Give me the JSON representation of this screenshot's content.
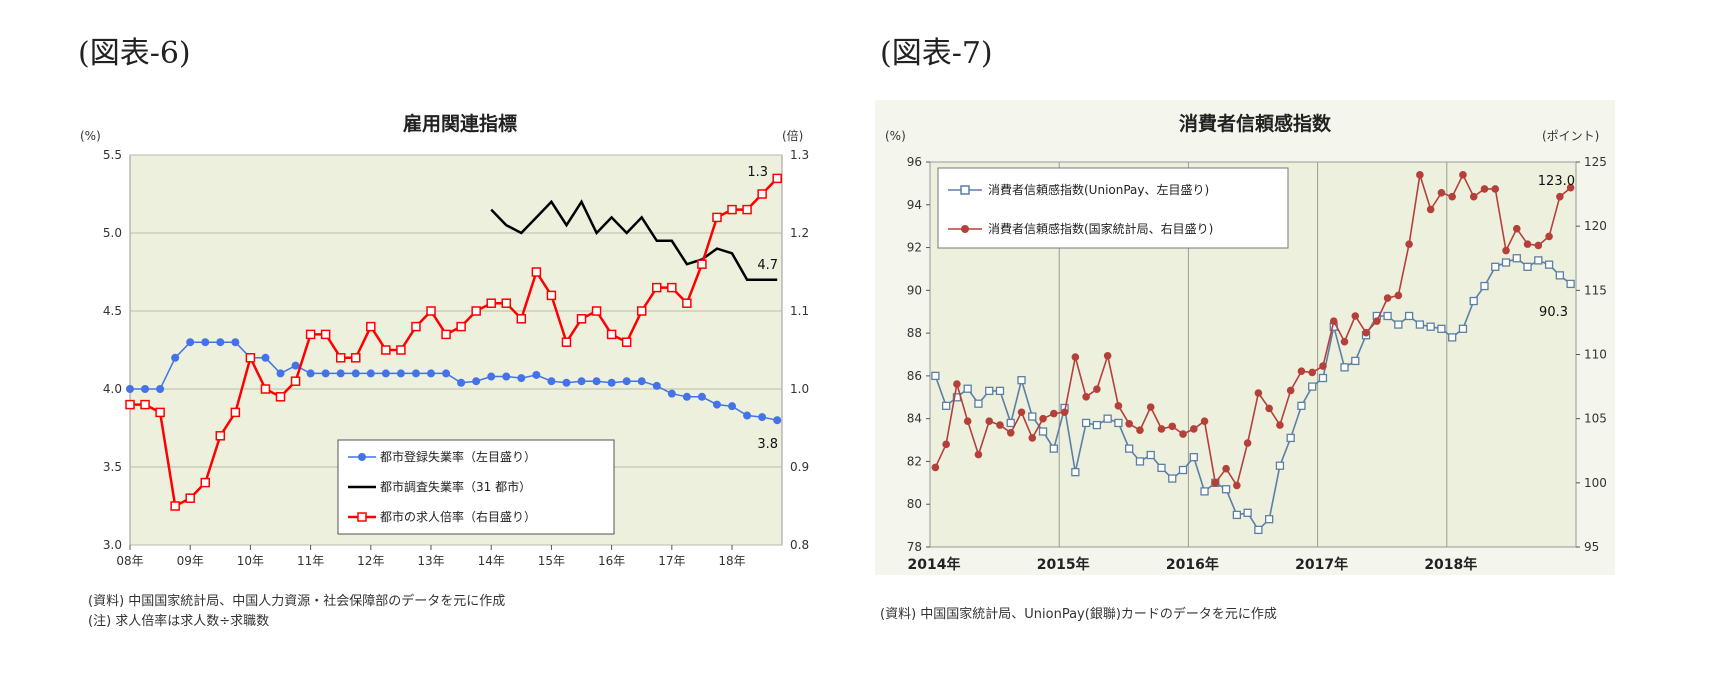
{
  "labels": {
    "fig6": "(図表-6)",
    "fig7": "(図表-7)"
  },
  "chart_data": [
    {
      "type": "line",
      "title": "雇用関連指標",
      "y_left_unit": "(%)",
      "y_right_unit": "(倍)",
      "ylim_left": [
        3.0,
        5.5
      ],
      "ylim_right": [
        0.8,
        1.3
      ],
      "y_left_ticks": [
        "3.0",
        "3.5",
        "4.0",
        "4.5",
        "5.0",
        "5.5"
      ],
      "y_right_ticks": [
        "0.8",
        "0.9",
        "1.0",
        "1.1",
        "1.2",
        "1.3"
      ],
      "x_ticks": [
        "08年",
        "09年",
        "10年",
        "11年",
        "12年",
        "13年",
        "14年",
        "15年",
        "16年",
        "17年",
        "18年"
      ],
      "xlim": [
        2008.0,
        2018.83
      ],
      "grid": "horizontal",
      "plot_bg": "#ecf0dd",
      "legend": "bottom-right",
      "series": [
        {
          "name": "都市登録失業率（左目盛り）",
          "axis": "left",
          "color": "#4472e8",
          "marker": "circle",
          "x": [
            2008.0,
            2008.25,
            2008.5,
            2008.75,
            2009.0,
            2009.25,
            2009.5,
            2009.75,
            2010.0,
            2010.25,
            2010.5,
            2010.75,
            2011.0,
            2011.25,
            2011.5,
            2011.75,
            2012.0,
            2012.25,
            2012.5,
            2012.75,
            2013.0,
            2013.25,
            2013.5,
            2013.75,
            2014.0,
            2014.25,
            2014.5,
            2014.75,
            2015.0,
            2015.25,
            2015.5,
            2015.75,
            2016.0,
            2016.25,
            2016.5,
            2016.75,
            2017.0,
            2017.25,
            2017.5,
            2017.75,
            2018.0,
            2018.25,
            2018.5,
            2018.75
          ],
          "values": [
            4.0,
            4.0,
            4.0,
            4.2,
            4.3,
            4.3,
            4.3,
            4.3,
            4.2,
            4.2,
            4.1,
            4.15,
            4.1,
            4.1,
            4.1,
            4.1,
            4.1,
            4.1,
            4.1,
            4.1,
            4.1,
            4.1,
            4.04,
            4.05,
            4.08,
            4.08,
            4.07,
            4.09,
            4.05,
            4.04,
            4.05,
            4.05,
            4.04,
            4.05,
            4.05,
            4.02,
            3.97,
            3.95,
            3.95,
            3.9,
            3.89,
            3.83,
            3.82,
            3.8
          ]
        },
        {
          "name": "都市調査失業率（31 都市）",
          "axis": "left",
          "color": "#000000",
          "marker": "none",
          "x": [
            2014.0,
            2014.25,
            2014.5,
            2014.75,
            2015.0,
            2015.25,
            2015.5,
            2015.75,
            2016.0,
            2016.25,
            2016.5,
            2016.75,
            2017.0,
            2017.25,
            2017.5,
            2017.75,
            2018.0,
            2018.25,
            2018.5,
            2018.75
          ],
          "values": [
            5.15,
            5.05,
            5.0,
            5.1,
            5.2,
            5.05,
            5.2,
            5.0,
            5.1,
            5.0,
            5.1,
            4.95,
            4.95,
            4.8,
            4.83,
            4.9,
            4.87,
            4.7,
            4.7,
            4.7
          ]
        },
        {
          "name": "都市の求人倍率（右目盛り）",
          "axis": "right",
          "color": "#ff0000",
          "marker": "square",
          "x": [
            2008.0,
            2008.25,
            2008.5,
            2008.75,
            2009.0,
            2009.25,
            2009.5,
            2009.75,
            2010.0,
            2010.25,
            2010.5,
            2010.75,
            2011.0,
            2011.25,
            2011.5,
            2011.75,
            2012.0,
            2012.25,
            2012.5,
            2012.75,
            2013.0,
            2013.25,
            2013.5,
            2013.75,
            2014.0,
            2014.25,
            2014.5,
            2014.75,
            2015.0,
            2015.25,
            2015.5,
            2015.75,
            2016.0,
            2016.25,
            2016.5,
            2016.75,
            2017.0,
            2017.25,
            2017.5,
            2017.75,
            2018.0,
            2018.25,
            2018.5,
            2018.75
          ],
          "values": [
            0.98,
            0.98,
            0.97,
            0.85,
            0.86,
            0.88,
            0.94,
            0.97,
            1.04,
            1.0,
            0.99,
            1.01,
            1.07,
            1.07,
            1.04,
            1.04,
            1.08,
            1.05,
            1.05,
            1.08,
            1.1,
            1.07,
            1.08,
            1.1,
            1.11,
            1.11,
            1.09,
            1.15,
            1.12,
            1.06,
            1.09,
            1.1,
            1.07,
            1.06,
            1.1,
            1.13,
            1.13,
            1.11,
            1.16,
            1.22,
            1.23,
            1.23,
            1.25,
            1.27
          ]
        }
      ],
      "annotations": [
        "1.3",
        "4.7",
        "3.8"
      ],
      "notes": [
        "(資料) 中国国家統計局、中国人力資源・社会保障部のデータを元に作成",
        "(注) 求人倍率は求人数÷求職数"
      ]
    },
    {
      "type": "line",
      "title": "消費者信頼感指数",
      "y_left_unit": "(%)",
      "y_right_unit": "(ポイント)",
      "ylim_left": [
        78,
        96
      ],
      "ylim_right": [
        95,
        125
      ],
      "y_left_ticks": [
        "78",
        "80",
        "82",
        "84",
        "86",
        "88",
        "90",
        "92",
        "94",
        "96"
      ],
      "y_right_ticks": [
        "95",
        "100",
        "105",
        "110",
        "115",
        "120",
        "125"
      ],
      "x_ticks": [
        "2014年",
        "2015年",
        "2016年",
        "2017年",
        "2018年"
      ],
      "xlim": [
        2014.0,
        2019.0
      ],
      "grid": "vertical",
      "plot_bg": "#ecf0dd",
      "legend": "top-left",
      "series": [
        {
          "name": "消費者信頼感指数(UnionPay、左目盛り)",
          "axis": "left",
          "color": "#5b7fa6",
          "marker": "square-open",
          "values": [
            86.0,
            84.6,
            85.0,
            85.4,
            84.7,
            85.3,
            85.3,
            83.8,
            85.8,
            84.1,
            83.4,
            82.6,
            84.5,
            81.5,
            83.8,
            83.7,
            84.0,
            83.8,
            82.6,
            82.0,
            82.3,
            81.7,
            81.2,
            81.6,
            82.2,
            80.6,
            81.0,
            80.7,
            79.5,
            79.6,
            78.8,
            79.3,
            81.8,
            83.1,
            84.6,
            85.5,
            85.9,
            88.3,
            86.4,
            86.7,
            87.9,
            88.8,
            88.8,
            88.4,
            88.8,
            88.4,
            88.3,
            88.2,
            87.8,
            88.2,
            89.5,
            90.2,
            91.1,
            91.3,
            91.5,
            91.1,
            91.4,
            91.2,
            90.7,
            90.3
          ]
        },
        {
          "name": "消費者信頼感指数(国家統計局、右目盛り)",
          "axis": "right",
          "color": "#b5403a",
          "marker": "circle",
          "values": [
            101.2,
            103.0,
            107.7,
            104.8,
            102.2,
            104.8,
            104.5,
            103.9,
            105.5,
            103.5,
            105.0,
            105.4,
            105.5,
            109.8,
            106.7,
            107.3,
            109.9,
            106.0,
            104.6,
            104.1,
            105.9,
            104.2,
            104.4,
            103.8,
            104.2,
            104.8,
            100.0,
            101.1,
            99.8,
            103.1,
            107.0,
            105.8,
            104.5,
            107.2,
            108.7,
            108.6,
            109.1,
            112.6,
            111.0,
            113.0,
            111.7,
            112.6,
            114.4,
            114.6,
            118.6,
            124.0,
            121.3,
            122.6,
            122.3,
            124.0,
            122.3,
            122.9,
            122.9,
            118.1,
            119.8,
            118.6,
            118.5,
            119.2,
            122.3,
            123.0
          ]
        }
      ],
      "annotations": [
        "123.0",
        "90.3"
      ],
      "notes": [
        "(資料) 中国国家統計局、UnionPay(銀聯)カードのデータを元に作成"
      ]
    }
  ]
}
